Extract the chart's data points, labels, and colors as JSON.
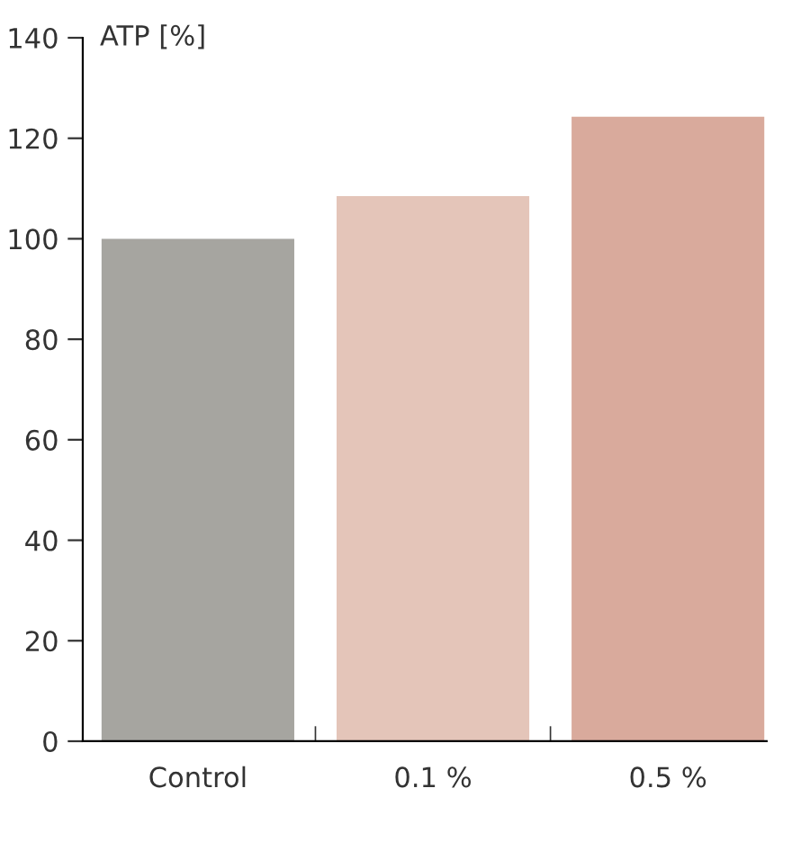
{
  "chart_data": {
    "type": "bar",
    "ylabel": "ATP [%]",
    "categories": [
      "Control",
      "0.1 %",
      "0.5 %"
    ],
    "values": [
      100,
      108.5,
      124.3
    ],
    "colors": [
      "#a6a5a0",
      "#e4c5b9",
      "#d9aa9c"
    ],
    "ylim": [
      0,
      140
    ],
    "yticks": [
      0,
      20,
      40,
      60,
      80,
      100,
      120,
      140
    ],
    "grid": false,
    "legend": false
  }
}
